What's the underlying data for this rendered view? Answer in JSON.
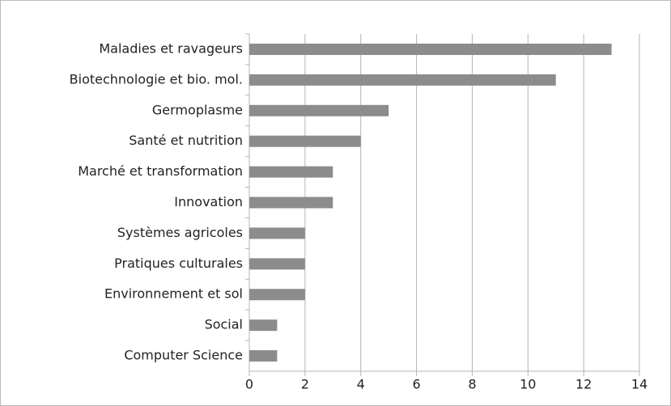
{
  "chart_data": {
    "type": "bar",
    "orientation": "horizontal",
    "categories": [
      "Maladies et ravageurs",
      "Biotechnologie et bio. mol.",
      "Germoplasme",
      "Santé et nutrition",
      "Marché et transformation",
      "Innovation",
      "Systèmes agricoles",
      "Pratiques culturales",
      "Environnement et sol",
      "Social",
      "Computer Science"
    ],
    "values": [
      13,
      11,
      5,
      4,
      3,
      3,
      2,
      2,
      2,
      1,
      1
    ],
    "color": "#8c8c8c",
    "xlim": [
      0,
      14
    ],
    "xticks": [
      0,
      2,
      4,
      6,
      8,
      10,
      12,
      14
    ],
    "grid": true
  }
}
